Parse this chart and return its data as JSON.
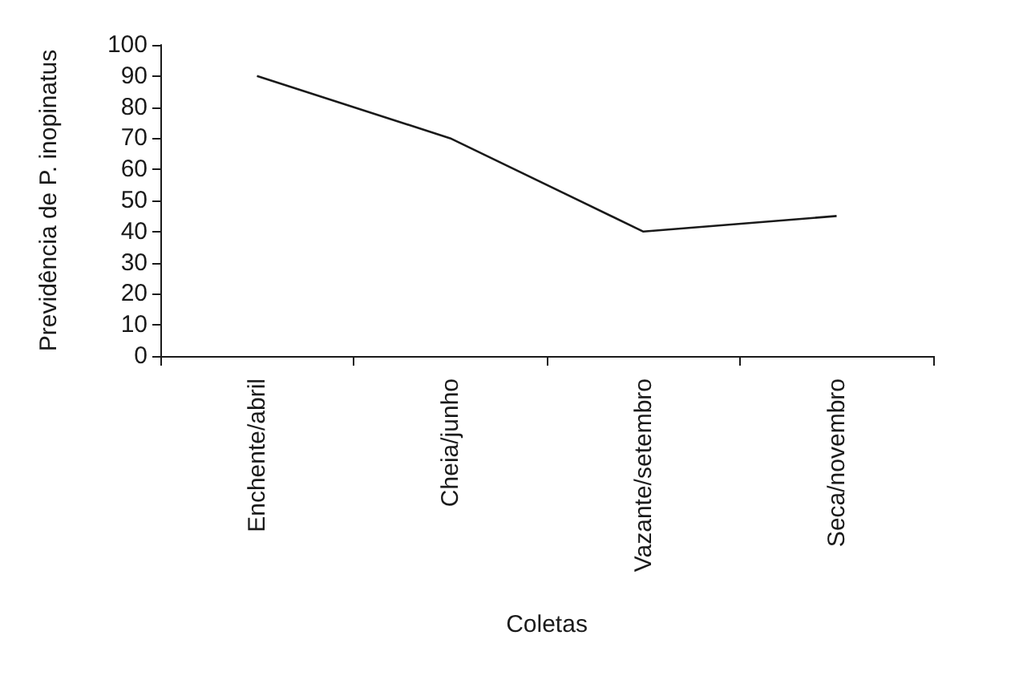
{
  "chart_data": {
    "type": "line",
    "xlabel": "Coletas",
    "ylabel": "Previdência de P. inopinatus",
    "categories": [
      "Enchente/abril",
      "Cheia/junho",
      "Vazante/setembro",
      "Seca/novembro"
    ],
    "series": [
      {
        "color": "#1a1a1a",
        "values": [
          90,
          70,
          40,
          45
        ]
      }
    ],
    "ylim": [
      0,
      100
    ],
    "yticks": [
      0,
      10,
      20,
      30,
      40,
      50,
      60,
      70,
      80,
      90,
      100
    ],
    "grid": false,
    "marker": "none",
    "line_style": "solid"
  }
}
